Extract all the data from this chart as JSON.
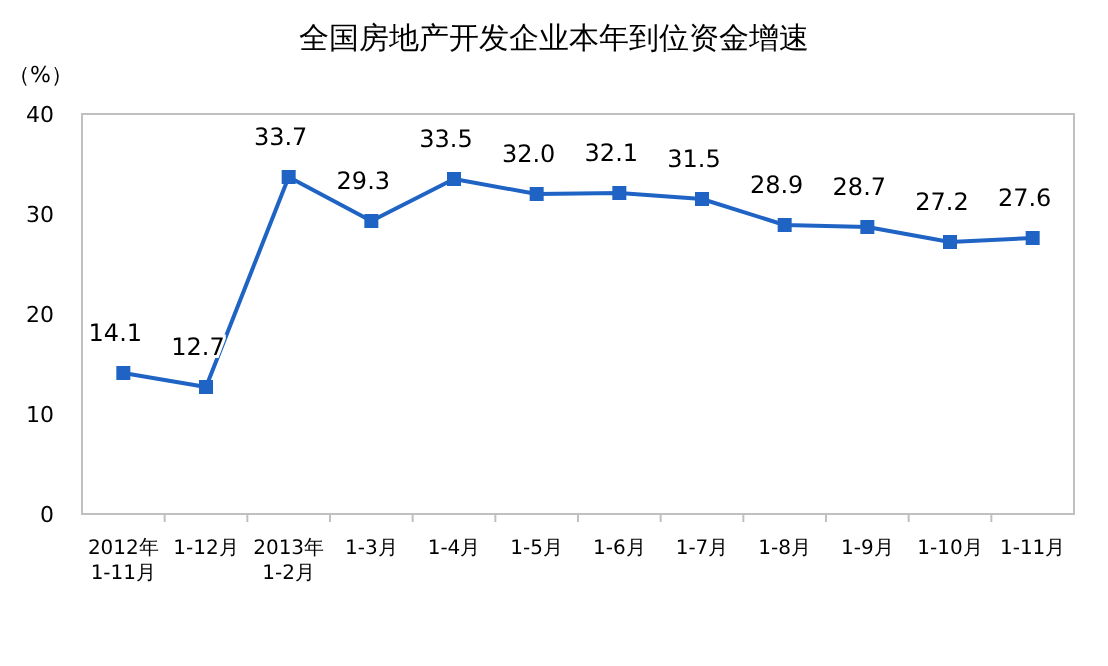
{
  "chart_data": {
    "type": "line",
    "title": "全国房地产开发企业本年到位资金增速",
    "ylabel": "（%）",
    "categories": [
      "2012年\n1-11月",
      "1-12月",
      "2013年\n1-2月",
      "1-3月",
      "1-4月",
      "1-5月",
      "1-6月",
      "1-7月",
      "1-8月",
      "1-9月",
      "1-10月",
      "1-11月"
    ],
    "series": [
      {
        "color": "#1f64c4",
        "values": [
          14.1,
          12.7,
          33.7,
          29.3,
          33.5,
          32.0,
          32.1,
          31.5,
          28.9,
          28.7,
          27.2,
          27.6
        ],
        "value_labels": [
          "14.1",
          "12.7",
          "33.7",
          "29.3",
          "33.5",
          "32.0",
          "32.1",
          "31.5",
          "28.9",
          "28.7",
          "27.2",
          "27.6"
        ]
      }
    ],
    "ylim": [
      0,
      40
    ],
    "yticks": [
      0,
      10,
      20,
      30,
      40
    ],
    "marker": "square"
  }
}
